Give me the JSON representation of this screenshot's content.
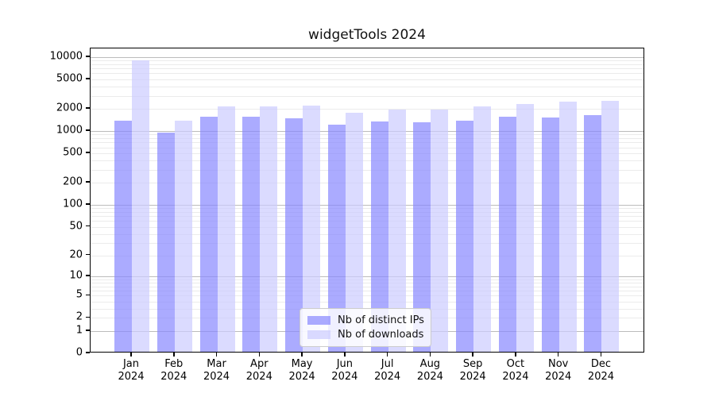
{
  "title": "widgetTools 2024",
  "chart_data": {
    "type": "bar",
    "title": "widgetTools 2024",
    "categories": [
      "Jan 2024",
      "Feb 2024",
      "Mar 2024",
      "Apr 2024",
      "May 2024",
      "Jun 2024",
      "Jul 2024",
      "Aug 2024",
      "Sep 2024",
      "Oct 2024",
      "Nov 2024",
      "Dec 2024"
    ],
    "months": [
      "Jan",
      "Feb",
      "Mar",
      "Apr",
      "May",
      "Jun",
      "Jul",
      "Aug",
      "Sep",
      "Oct",
      "Nov",
      "Dec"
    ],
    "year": "2024",
    "series": [
      {
        "name": "Nb of distinct IPs",
        "color": "#8888FF",
        "values": [
          1320,
          910,
          1500,
          1490,
          1410,
          1150,
          1280,
          1250,
          1300,
          1490,
          1450,
          1550
        ]
      },
      {
        "name": "Nb of downloads",
        "color": "#CCCCFF",
        "values": [
          8500,
          1320,
          2030,
          2060,
          2080,
          1700,
          1880,
          1850,
          2030,
          2210,
          2380,
          2450
        ]
      }
    ],
    "yscale": "log10(value+1)",
    "ylim": [
      0,
      13000
    ],
    "y_tick_labels": [
      "10000",
      "5000",
      "2000",
      "1000",
      "500",
      "200",
      "100",
      "50",
      "20",
      "10",
      "5",
      "2",
      "1",
      "0"
    ],
    "grid": "both",
    "legend_position": "lower center",
    "colors": {
      "major_grid": "#bcbcbc",
      "minor_grid": "#ebebeb",
      "spine": "#000000"
    }
  }
}
